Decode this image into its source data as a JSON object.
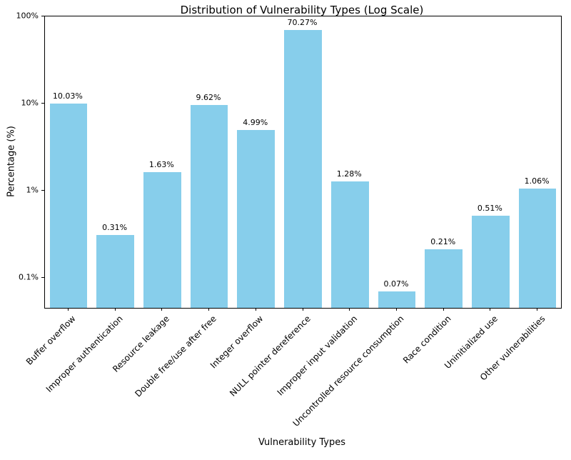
{
  "chart_data": {
    "type": "bar",
    "title": "Distribution of Vulnerability Types (Log Scale)",
    "xlabel": "Vulnerability Types",
    "ylabel": "Percentage (%)",
    "categories": [
      "Buffer overflow",
      "Improper authentication",
      "Resource leakage",
      "Double free/use after free",
      "Integer overflow",
      "NULL pointer dereference",
      "Improper input validation",
      "Uncontrolled resource consumption",
      "Race condition",
      "Uninitialized use",
      "Other vulnerabilities"
    ],
    "values": [
      10.03,
      0.31,
      1.63,
      9.62,
      4.99,
      70.27,
      1.28,
      0.07,
      0.21,
      0.51,
      1.06
    ],
    "value_labels": [
      "10.03%",
      "0.31%",
      "1.63%",
      "9.62%",
      "4.99%",
      "70.27%",
      "1.28%",
      "0.07%",
      "0.21%",
      "0.51%",
      "1.06%"
    ],
    "y_scale": "log",
    "ylim": [
      0.045,
      100
    ],
    "y_ticks": [
      {
        "value": 0.1,
        "label": "0.1%"
      },
      {
        "value": 1,
        "label": "1%"
      },
      {
        "value": 10,
        "label": "10%"
      },
      {
        "value": 100,
        "label": "100%"
      }
    ],
    "bar_color": "#87CEEB",
    "grid": false,
    "legend": false
  }
}
